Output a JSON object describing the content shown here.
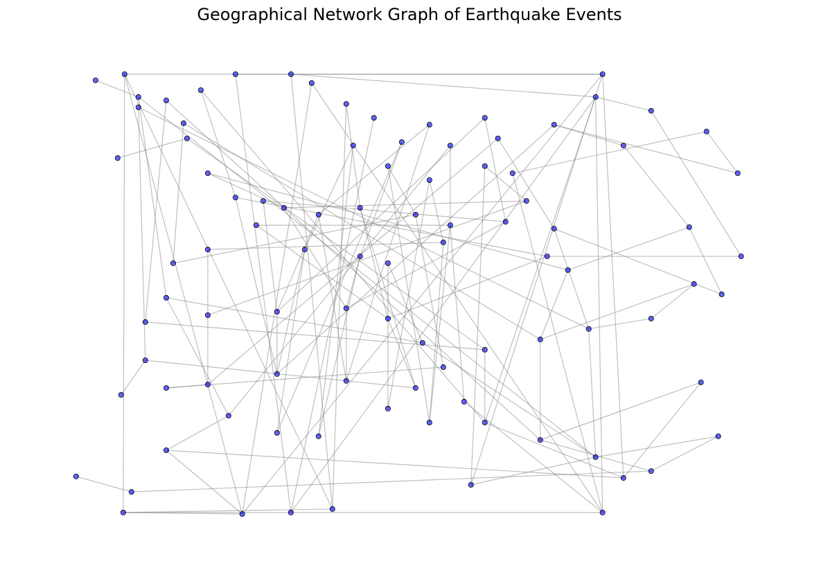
{
  "chart_data": {
    "type": "network",
    "title": "Geographical Network Graph of Earthquake Events",
    "node_color": "#0000ff",
    "edge_color": "#808080",
    "xlim": [
      -220,
      290
    ],
    "ylim": [
      -90,
      90
    ],
    "x": [
      -179,
      -168.6,
      -147.7,
      -121.7,
      -95.7,
      -54,
      -168.6,
      -134.7,
      -132.1,
      -116.5,
      -95.7,
      -74.9,
      -59.3,
      -80.1,
      -116.5,
      -142.5,
      -147.7,
      -163.4,
      -163.4,
      -147.7,
      -147.7,
      -173.8,
      -180,
      -38.5,
      -12.5,
      8.3,
      -7.3,
      18.8,
      50,
      91.6,
      112.4,
      29.2,
      65.6,
      101.4,
      143.6,
      174.8,
      180,
      50,
      91.6,
      122.8,
      107.2,
      138.4,
      154,
      143.6,
      -33.3,
      -2.1,
      39.6,
      65.6,
      60.4,
      -43.7,
      -2.1,
      18.8,
      -116.5,
      -64.5,
      -12.5,
      18.8,
      44.8,
      91.6,
      133.2,
      169.6,
      -116.5,
      -64.5,
      -12.5,
      39.6,
      60.4,
      76,
      91.6,
      133.2,
      174.8,
      -100.9,
      -64.5,
      -33.3,
      18.8,
      50,
      -90.6,
      -54.1,
      -22.9,
      81.2,
      180,
      195.7,
      216.5,
      195.7,
      216.5,
      258.1,
      281.5,
      245.1,
      284.1,
      248.7,
      269.5,
      216.5,
      266.9,
      253.9,
      -215.4,
      -200.8,
      -184.2,
      -181.6
    ],
    "y": [
      89.4,
      80.1,
      78.7,
      82.9,
      89.4,
      89.4,
      75.9,
      69.4,
      63.2,
      49,
      39.1,
      37.7,
      34.9,
      27.8,
      17.9,
      12.3,
      -1.8,
      -11.7,
      -27.3,
      -38.6,
      -64,
      -81,
      -89.4,
      85.8,
      77.3,
      71.6,
      60.3,
      51.9,
      46.2,
      51.9,
      49,
      61.7,
      60.3,
      63.2,
      68.8,
      80.1,
      89.4,
      68.8,
      71.6,
      37.7,
      29.2,
      15.1,
      9.5,
      26.4,
      32.1,
      34.9,
      32.1,
      27.8,
      20.8,
      17.9,
      15.1,
      12.3,
      -8.9,
      -7.5,
      -6.1,
      -10.3,
      -20.2,
      -23,
      -18.8,
      -14.5,
      -37.2,
      -32.9,
      -35.7,
      -38.6,
      -30.1,
      -44.2,
      -52.7,
      -59.8,
      -66.8,
      -49.9,
      -56.9,
      -58.3,
      -47,
      -52.7,
      -90,
      -89.4,
      -88,
      -78.1,
      -89.4,
      -75.3,
      -72.5,
      60.3,
      74.5,
      66,
      49,
      27,
      15.1,
      3.8,
      -0.4,
      -10.3,
      -58.3,
      -36.3,
      -74.7,
      86.9,
      55.2,
      -41.4
    ],
    "edges": [
      [
        0,
        36
      ],
      [
        4,
        36
      ],
      [
        5,
        35
      ],
      [
        23,
        78
      ],
      [
        0,
        22
      ],
      [
        22,
        78
      ],
      [
        74,
        36
      ],
      [
        75,
        35
      ],
      [
        76,
        0
      ],
      [
        1,
        68
      ],
      [
        2,
        67
      ],
      [
        3,
        66
      ],
      [
        6,
        59
      ],
      [
        7,
        58
      ],
      [
        8,
        57
      ],
      [
        9,
        42
      ],
      [
        10,
        41
      ],
      [
        11,
        40
      ],
      [
        12,
        39
      ],
      [
        13,
        47
      ],
      [
        14,
        48
      ],
      [
        15,
        46
      ],
      [
        16,
        56
      ],
      [
        17,
        57
      ],
      [
        18,
        63
      ],
      [
        19,
        64
      ],
      [
        20,
        79
      ],
      [
        21,
        80
      ],
      [
        22,
        74
      ],
      [
        24,
        76
      ],
      [
        25,
        75
      ],
      [
        26,
        71
      ],
      [
        27,
        73
      ],
      [
        28,
        72
      ],
      [
        29,
        77
      ],
      [
        30,
        78
      ],
      [
        31,
        70
      ],
      [
        32,
        69
      ],
      [
        33,
        60
      ],
      [
        34,
        61
      ],
      [
        35,
        78
      ],
      [
        36,
        79
      ],
      [
        37,
        62
      ],
      [
        38,
        53
      ],
      [
        39,
        52
      ],
      [
        40,
        54
      ],
      [
        41,
        55
      ],
      [
        42,
        58
      ],
      [
        43,
        59
      ],
      [
        44,
        62
      ],
      [
        45,
        63
      ],
      [
        46,
        64
      ],
      [
        47,
        65
      ],
      [
        49,
        61
      ],
      [
        50,
        54
      ],
      [
        51,
        56
      ],
      [
        52,
        60
      ],
      [
        53,
        61
      ],
      [
        54,
        62
      ],
      [
        55,
        63
      ],
      [
        57,
        66
      ],
      [
        58,
        67
      ],
      [
        59,
        68
      ],
      [
        60,
        19
      ],
      [
        69,
        20
      ],
      [
        74,
        20
      ],
      [
        77,
        68
      ],
      [
        81,
        34
      ],
      [
        82,
        35
      ],
      [
        83,
        30
      ],
      [
        84,
        34
      ],
      [
        85,
        42
      ],
      [
        86,
        41
      ],
      [
        87,
        58
      ],
      [
        88,
        43
      ],
      [
        89,
        59
      ],
      [
        90,
        68
      ],
      [
        91,
        67
      ],
      [
        92,
        21
      ],
      [
        93,
        1
      ],
      [
        94,
        8
      ],
      [
        95,
        18
      ],
      [
        83,
        84
      ],
      [
        85,
        88
      ],
      [
        87,
        89
      ],
      [
        80,
        90
      ],
      [
        79,
        91
      ],
      [
        82,
        86
      ],
      [
        81,
        85
      ],
      [
        0,
        74
      ],
      [
        4,
        75
      ],
      [
        5,
        76
      ],
      [
        23,
        74
      ],
      [
        22,
        76
      ],
      [
        36,
        77
      ],
      [
        35,
        66
      ],
      [
        14,
        52
      ],
      [
        16,
        69
      ],
      [
        9,
        12
      ],
      [
        3,
        10
      ],
      [
        24,
        45
      ],
      [
        26,
        49
      ],
      [
        27,
        46
      ],
      [
        31,
        50
      ],
      [
        32,
        47
      ],
      [
        33,
        43
      ],
      [
        38,
        40
      ],
      [
        29,
        39
      ],
      [
        37,
        44
      ],
      [
        28,
        48
      ],
      [
        1,
        16
      ],
      [
        2,
        17
      ],
      [
        6,
        18
      ],
      [
        7,
        15
      ],
      [
        44,
        53
      ],
      [
        45,
        55
      ],
      [
        11,
        53
      ],
      [
        12,
        54
      ],
      [
        13,
        55
      ],
      [
        10,
        61
      ],
      [
        49,
        70
      ],
      [
        50,
        71
      ],
      [
        51,
        72
      ],
      [
        48,
        73
      ],
      [
        47,
        73
      ],
      [
        65,
        78
      ],
      [
        66,
        79
      ],
      [
        67,
        80
      ],
      [
        56,
        68
      ]
    ]
  }
}
